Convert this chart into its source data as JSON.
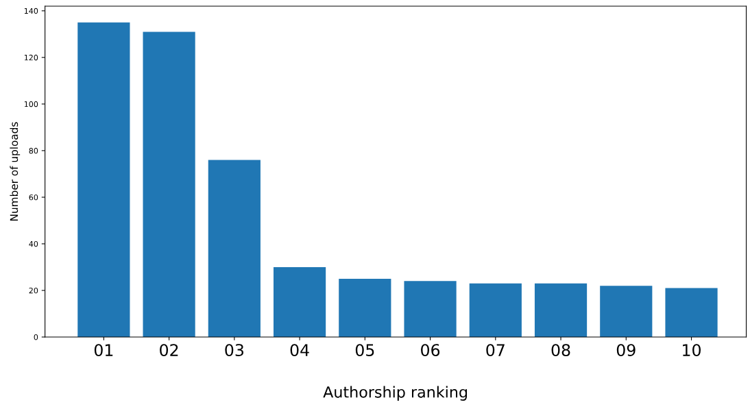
{
  "chart_data": {
    "type": "bar",
    "xlabel": "Authorship ranking",
    "ylabel": "Number of uploads",
    "categories": [
      "01",
      "02",
      "03",
      "04",
      "05",
      "06",
      "07",
      "08",
      "09",
      "10"
    ],
    "values": [
      135,
      131,
      76,
      30,
      25,
      24,
      23,
      23,
      22,
      21
    ],
    "color": "#2077b4",
    "ylim": [
      0,
      142
    ],
    "yticks": [
      0,
      20,
      40,
      60,
      80,
      100,
      120,
      140
    ],
    "grid": false
  }
}
